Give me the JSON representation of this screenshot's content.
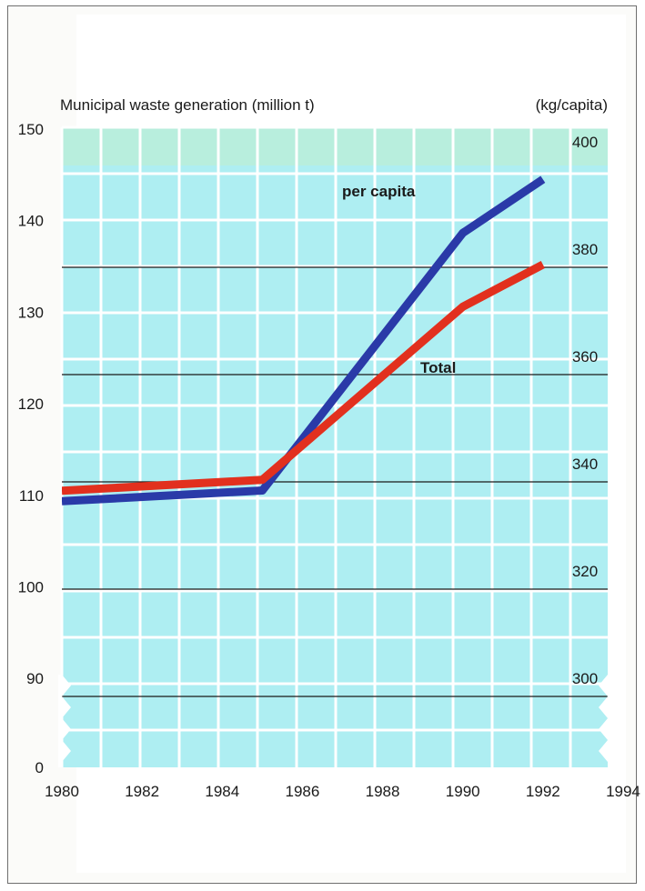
{
  "chart_data": {
    "type": "line",
    "title": "Municipal waste generation (million t)",
    "y2label": "(kg/capita)",
    "x_ticks": [
      "1980",
      "1982",
      "1984",
      "1986",
      "1988",
      "1990",
      "1992",
      "1994"
    ],
    "xlim": [
      1980,
      1994
    ],
    "y_left_ticks": [
      "0",
      "90",
      "100",
      "110",
      "120",
      "130",
      "140",
      "150"
    ],
    "y_left_range_shown": [
      90,
      150
    ],
    "y_left_axis_break": "0",
    "y_right_ticks": [
      "300",
      "320",
      "340",
      "360",
      "380",
      "400"
    ],
    "y_right_range_shown": [
      290,
      400
    ],
    "grid": true,
    "series": [
      {
        "name": "per capita",
        "axis": "right",
        "color": "#2a3aa8",
        "x": [
          1980,
          1985,
          1990,
          1992
        ],
        "y": [
          333,
          335,
          383,
          393
        ]
      },
      {
        "name": "Total",
        "axis": "left",
        "color": "#e2301e",
        "x": [
          1980,
          1985,
          1990,
          1992
        ],
        "y": [
          110.5,
          111.7,
          130.6,
          135.2
        ]
      }
    ],
    "colors": {
      "plot_bg": "#aeeef2",
      "top_band": "#b8eedd",
      "grid_white": "#ffffff",
      "reference_line": "#1a1a1a"
    }
  }
}
